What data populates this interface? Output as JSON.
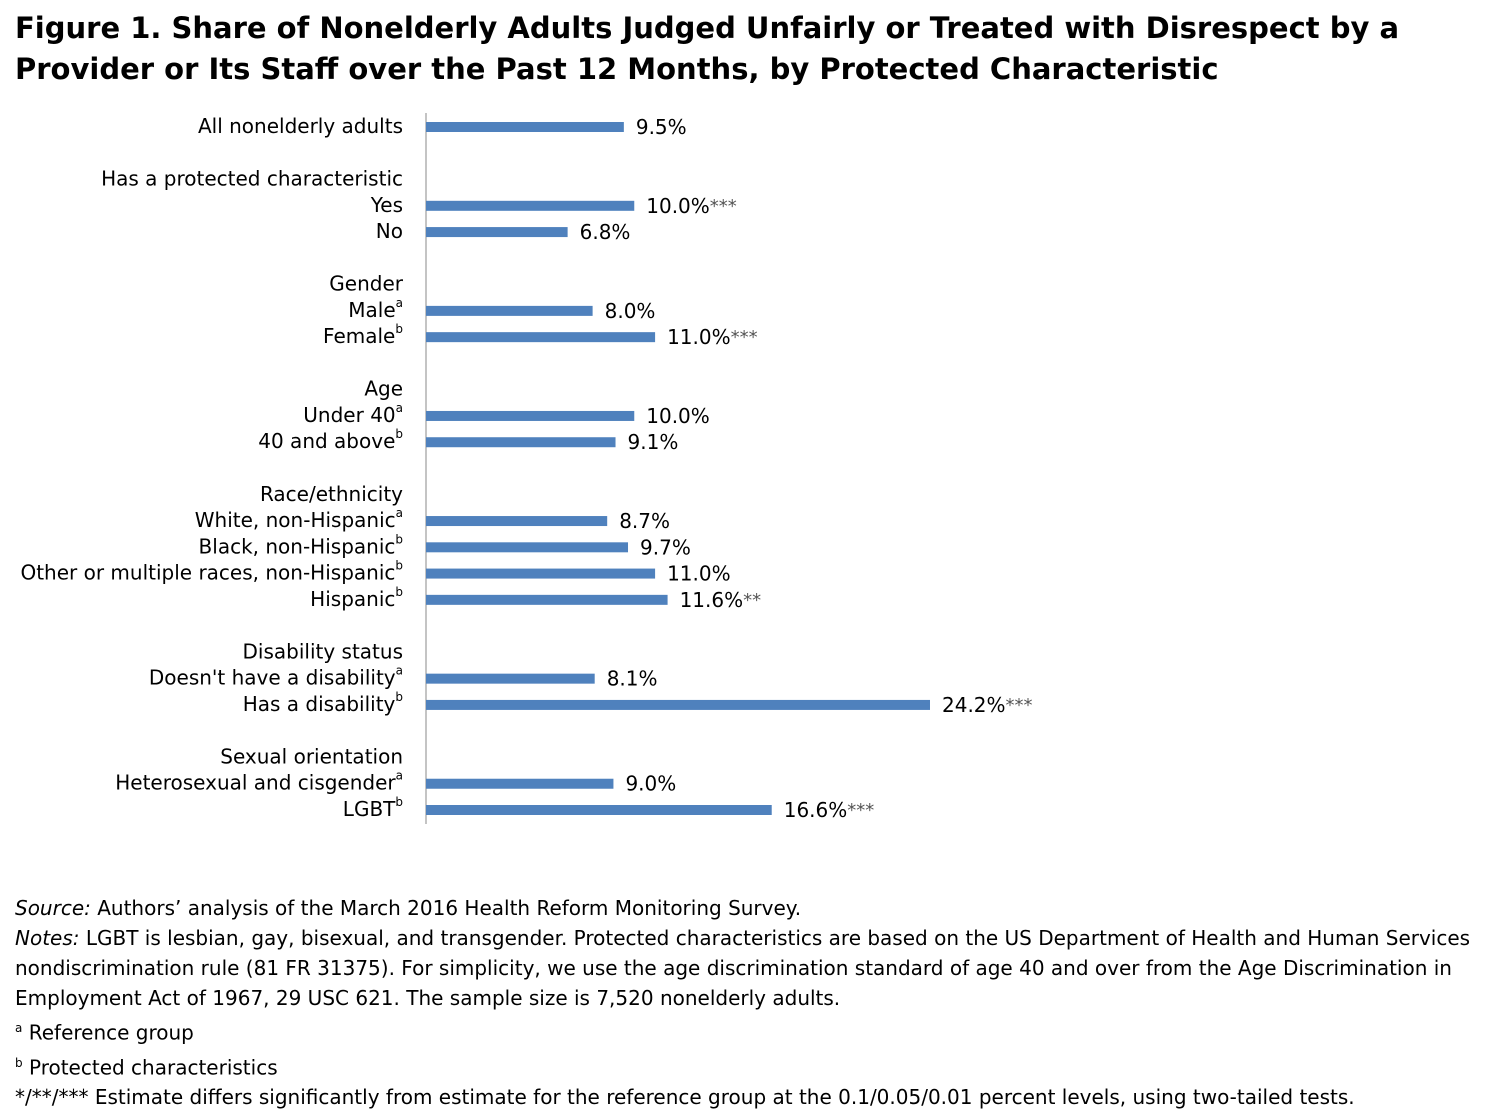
{
  "chart_data": {
    "type": "bar",
    "orientation": "horizontal",
    "title": "Figure 1. Share of Nonelderly Adults Judged Unfairly or Treated with Disrespect by a Provider or Its Staff over the Past 12 Months, by Protected Characteristic",
    "categories": [
      "All nonelderly adults",
      null,
      "Has a protected characteristic",
      "Yes",
      "No",
      null,
      "Gender",
      "Male",
      "Female",
      null,
      "Age",
      "Under 40",
      "40 and above",
      null,
      "Race/ethnicity",
      "White, non-Hispanic",
      "Black, non-Hispanic",
      "Other or multiple races, non-Hispanic",
      "Hispanic",
      null,
      "Disability status",
      "Doesn't have a disability",
      "Has a disability",
      null,
      "Sexual orientation",
      "Heterosexual and cisgender",
      "LGBT"
    ],
    "category_superscripts": [
      null,
      null,
      null,
      null,
      null,
      null,
      null,
      "a",
      "b",
      null,
      null,
      "a",
      "b",
      null,
      null,
      "a",
      "b",
      "b",
      "b",
      null,
      null,
      "a",
      "b",
      null,
      null,
      "a",
      "b"
    ],
    "values": [
      9.5,
      null,
      null,
      10.0,
      6.8,
      null,
      null,
      8.0,
      11.0,
      null,
      null,
      10.0,
      9.1,
      null,
      null,
      8.7,
      9.7,
      11.0,
      11.6,
      null,
      null,
      8.1,
      24.2,
      null,
      null,
      9.0,
      16.6
    ],
    "value_labels": [
      "9.5%",
      null,
      null,
      "10.0%",
      "6.8%",
      null,
      null,
      "8.0%",
      "11.0%",
      null,
      null,
      "10.0%",
      "9.1%",
      null,
      null,
      "8.7%",
      "9.7%",
      "11.0%",
      "11.6%",
      null,
      null,
      "8.1%",
      "24.2%",
      null,
      null,
      "9.0%",
      "16.6%"
    ],
    "significance": [
      null,
      null,
      null,
      "***",
      null,
      null,
      null,
      null,
      "***",
      null,
      null,
      null,
      null,
      null,
      null,
      null,
      null,
      null,
      "**",
      null,
      null,
      null,
      "***",
      null,
      null,
      null,
      "***"
    ],
    "color": "#4f81bd",
    "notes": {
      "source_label": "Source:",
      "source": "Authors’ analysis of the March 2016 Health Reform Monitoring Survey.",
      "notes_label": "Notes:",
      "notes": "LGBT is lesbian, gay, bisexual, and transgender. Protected characteristics are based on the US Department of Health and Human Services nondiscrimination rule (81 FR 31375). For simplicity, we use the age discrimination standard of age 40 and over from the Age Discrimination in Employment Act of 1967, 29 USC 621. The sample size is 7,520 nonelderly adults.",
      "footnotes": [
        {
          "marker": "a",
          "text": "Reference group"
        },
        {
          "marker": "b",
          "text": "Protected characteristics"
        },
        {
          "marker": "*/**/***",
          "text": "Estimate differs significantly from estimate for the reference group at the 0.1/0.05/0.01 percent levels, using two-tailed tests."
        }
      ]
    }
  }
}
